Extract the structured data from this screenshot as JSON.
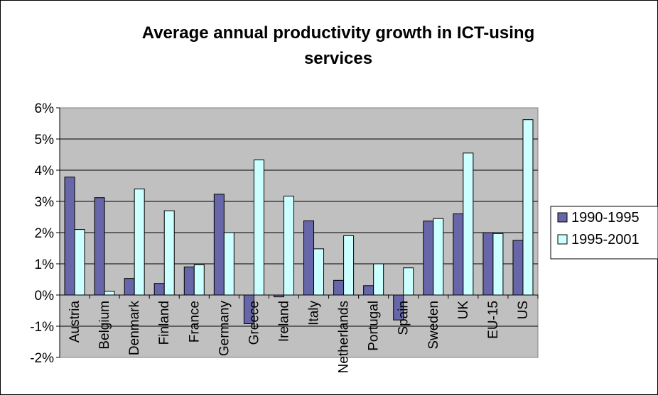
{
  "chart_data": {
    "type": "bar",
    "title_lines": [
      "Average annual productivity growth in ICT-using",
      "services"
    ],
    "xlabel": "",
    "ylabel": "",
    "categories": [
      "Austria",
      "Belgium",
      "Denmark",
      "Finland",
      "France",
      "Germany",
      "Greece",
      "Ireland",
      "Italy",
      "Netherlands",
      "Portugal",
      "Spain",
      "Sweden",
      "UK",
      "EU-15",
      "US"
    ],
    "series": [
      {
        "name": "1990-1995",
        "color": "#6666a8",
        "values": [
          3.78,
          3.12,
          0.53,
          0.37,
          0.9,
          3.23,
          -0.92,
          -0.06,
          2.38,
          0.47,
          0.3,
          -0.8,
          2.37,
          2.6,
          2.0,
          1.75
        ]
      },
      {
        "name": "1995-2001",
        "color": "#ccffff",
        "values": [
          2.1,
          0.12,
          3.4,
          2.7,
          0.97,
          2.0,
          4.33,
          3.17,
          1.48,
          1.9,
          1.0,
          0.87,
          2.45,
          4.55,
          1.97,
          5.62
        ]
      }
    ],
    "yticks": [
      "6%",
      "5%",
      "4%",
      "3%",
      "2%",
      "1%",
      "0%",
      "-1%",
      "-2%"
    ],
    "ylim": [
      -2,
      6
    ],
    "grid": true,
    "plot_background": "#c0c0c0",
    "legend_position": "right"
  }
}
